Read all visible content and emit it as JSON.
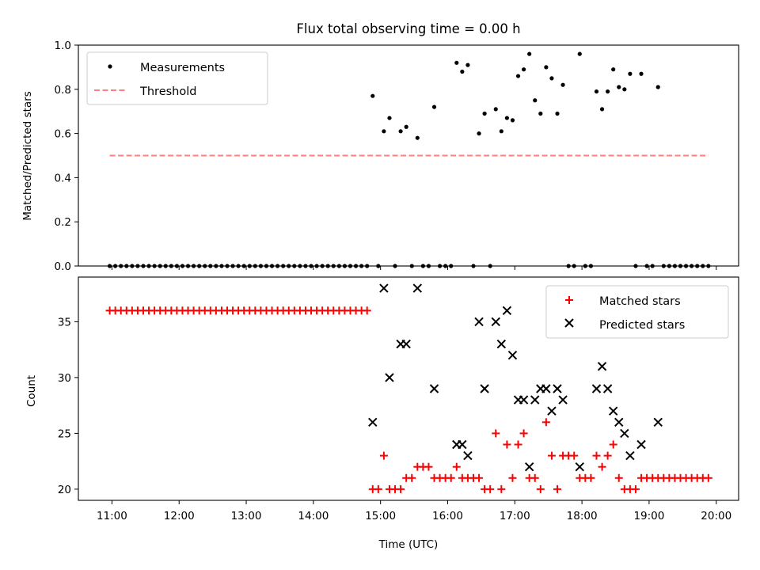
{
  "chart_data": [
    {
      "type": "scatter",
      "title": "Flux total observing time = 0.00 h",
      "ylabel": "Matched/Predicted stars",
      "xlim": [
        "10:30",
        "20:20"
      ],
      "ylim": [
        0,
        1.0
      ],
      "yticks": [
        0.0,
        0.2,
        0.4,
        0.6,
        0.8,
        1.0
      ],
      "ytick_labels": [
        "0.0",
        "0.2",
        "0.4",
        "0.6",
        "0.8",
        "1.0"
      ],
      "legend_position": "top-left",
      "series": [
        {
          "name": "Measurements",
          "style": "dot",
          "color": "#000000",
          "points": [
            [
              "10:58",
              0
            ],
            [
              "11:03",
              0
            ],
            [
              "11:08",
              0
            ],
            [
              "11:13",
              0
            ],
            [
              "11:18",
              0
            ],
            [
              "11:23",
              0
            ],
            [
              "11:28",
              0
            ],
            [
              "11:33",
              0
            ],
            [
              "11:38",
              0
            ],
            [
              "11:43",
              0
            ],
            [
              "11:48",
              0
            ],
            [
              "11:53",
              0
            ],
            [
              "11:58",
              0
            ],
            [
              "12:03",
              0
            ],
            [
              "12:08",
              0
            ],
            [
              "12:13",
              0
            ],
            [
              "12:18",
              0
            ],
            [
              "12:23",
              0
            ],
            [
              "12:28",
              0
            ],
            [
              "12:33",
              0
            ],
            [
              "12:38",
              0
            ],
            [
              "12:43",
              0
            ],
            [
              "12:48",
              0
            ],
            [
              "12:53",
              0
            ],
            [
              "12:58",
              0
            ],
            [
              "13:03",
              0
            ],
            [
              "13:08",
              0
            ],
            [
              "13:13",
              0
            ],
            [
              "13:18",
              0
            ],
            [
              "13:23",
              0
            ],
            [
              "13:28",
              0
            ],
            [
              "13:33",
              0
            ],
            [
              "13:38",
              0
            ],
            [
              "13:43",
              0
            ],
            [
              "13:48",
              0
            ],
            [
              "13:53",
              0
            ],
            [
              "13:58",
              0
            ],
            [
              "14:03",
              0
            ],
            [
              "14:08",
              0
            ],
            [
              "14:13",
              0
            ],
            [
              "14:18",
              0
            ],
            [
              "14:23",
              0
            ],
            [
              "14:28",
              0
            ],
            [
              "14:33",
              0
            ],
            [
              "14:38",
              0
            ],
            [
              "14:43",
              0
            ],
            [
              "14:48",
              0
            ],
            [
              "14:53",
              0.77
            ],
            [
              "14:58",
              0
            ],
            [
              "15:03",
              0.61
            ],
            [
              "15:08",
              0.67
            ],
            [
              "15:13",
              0
            ],
            [
              "15:18",
              0.61
            ],
            [
              "15:23",
              0.63
            ],
            [
              "15:28",
              0
            ],
            [
              "15:33",
              0.58
            ],
            [
              "15:38",
              0
            ],
            [
              "15:43",
              0
            ],
            [
              "15:48",
              0.72
            ],
            [
              "15:53",
              0
            ],
            [
              "15:58",
              0
            ],
            [
              "16:03",
              0
            ],
            [
              "16:08",
              0.92
            ],
            [
              "16:13",
              0.88
            ],
            [
              "16:18",
              0.91
            ],
            [
              "16:23",
              0
            ],
            [
              "16:28",
              0.6
            ],
            [
              "16:33",
              0.69
            ],
            [
              "16:38",
              0
            ],
            [
              "16:43",
              0.71
            ],
            [
              "16:48",
              0.61
            ],
            [
              "16:53",
              0.67
            ],
            [
              "16:58",
              0.66
            ],
            [
              "17:03",
              0.86
            ],
            [
              "17:08",
              0.89
            ],
            [
              "17:13",
              0.96
            ],
            [
              "17:18",
              0.75
            ],
            [
              "17:23",
              0.69
            ],
            [
              "17:28",
              0.9
            ],
            [
              "17:33",
              0.85
            ],
            [
              "17:38",
              0.69
            ],
            [
              "17:43",
              0.82
            ],
            [
              "17:48",
              0
            ],
            [
              "17:53",
              0
            ],
            [
              "17:58",
              0.96
            ],
            [
              "18:03",
              0
            ],
            [
              "18:08",
              0
            ],
            [
              "18:13",
              0.79
            ],
            [
              "18:18",
              0.71
            ],
            [
              "18:23",
              0.79
            ],
            [
              "18:28",
              0.89
            ],
            [
              "18:33",
              0.81
            ],
            [
              "18:38",
              0.8
            ],
            [
              "18:43",
              0.87
            ],
            [
              "18:48",
              0
            ],
            [
              "18:53",
              0.87
            ],
            [
              "18:58",
              0
            ],
            [
              "19:03",
              0
            ],
            [
              "19:08",
              0.81
            ],
            [
              "19:13",
              0
            ],
            [
              "19:18",
              0
            ],
            [
              "19:23",
              0
            ],
            [
              "19:28",
              0
            ],
            [
              "19:33",
              0
            ],
            [
              "19:38",
              0
            ],
            [
              "19:43",
              0
            ],
            [
              "19:48",
              0
            ],
            [
              "19:53",
              0
            ]
          ]
        },
        {
          "name": "Threshold",
          "style": "dashed-line",
          "color": "#ff7f7f",
          "points": [
            [
              "10:58",
              0.5
            ],
            [
              "19:53",
              0.5
            ]
          ]
        }
      ]
    },
    {
      "type": "scatter",
      "xlabel": "Time (UTC)",
      "ylabel": "Count",
      "xlim": [
        "10:30",
        "20:20"
      ],
      "ylim": [
        19.0,
        39.0
      ],
      "yticks": [
        20,
        25,
        30,
        35
      ],
      "ytick_labels": [
        "20",
        "25",
        "30",
        "35"
      ],
      "xticks": [
        "11:00",
        "12:00",
        "13:00",
        "14:00",
        "15:00",
        "16:00",
        "17:00",
        "18:00",
        "19:00",
        "20:00"
      ],
      "xtick_labels": [
        "11:00",
        "12:00",
        "13:00",
        "14:00",
        "15:00",
        "16:00",
        "17:00",
        "18:00",
        "19:00",
        "20:00"
      ],
      "legend_position": "top-right",
      "series": [
        {
          "name": "Matched stars",
          "style": "plus",
          "color": "#ff0000",
          "points": [
            [
              "10:58",
              36
            ],
            [
              "11:03",
              36
            ],
            [
              "11:08",
              36
            ],
            [
              "11:13",
              36
            ],
            [
              "11:18",
              36
            ],
            [
              "11:23",
              36
            ],
            [
              "11:28",
              36
            ],
            [
              "11:33",
              36
            ],
            [
              "11:38",
              36
            ],
            [
              "11:43",
              36
            ],
            [
              "11:48",
              36
            ],
            [
              "11:53",
              36
            ],
            [
              "11:58",
              36
            ],
            [
              "12:03",
              36
            ],
            [
              "12:08",
              36
            ],
            [
              "12:13",
              36
            ],
            [
              "12:18",
              36
            ],
            [
              "12:23",
              36
            ],
            [
              "12:28",
              36
            ],
            [
              "12:33",
              36
            ],
            [
              "12:38",
              36
            ],
            [
              "12:43",
              36
            ],
            [
              "12:48",
              36
            ],
            [
              "12:53",
              36
            ],
            [
              "12:58",
              36
            ],
            [
              "13:03",
              36
            ],
            [
              "13:08",
              36
            ],
            [
              "13:13",
              36
            ],
            [
              "13:18",
              36
            ],
            [
              "13:23",
              36
            ],
            [
              "13:28",
              36
            ],
            [
              "13:33",
              36
            ],
            [
              "13:38",
              36
            ],
            [
              "13:43",
              36
            ],
            [
              "13:48",
              36
            ],
            [
              "13:53",
              36
            ],
            [
              "13:58",
              36
            ],
            [
              "14:03",
              36
            ],
            [
              "14:08",
              36
            ],
            [
              "14:13",
              36
            ],
            [
              "14:18",
              36
            ],
            [
              "14:23",
              36
            ],
            [
              "14:28",
              36
            ],
            [
              "14:33",
              36
            ],
            [
              "14:38",
              36
            ],
            [
              "14:43",
              36
            ],
            [
              "14:48",
              36
            ],
            [
              "14:53",
              20
            ],
            [
              "14:58",
              20
            ],
            [
              "15:03",
              23
            ],
            [
              "15:08",
              20
            ],
            [
              "15:13",
              20
            ],
            [
              "15:18",
              20
            ],
            [
              "15:23",
              21
            ],
            [
              "15:28",
              21
            ],
            [
              "15:33",
              22
            ],
            [
              "15:38",
              22
            ],
            [
              "15:43",
              22
            ],
            [
              "15:48",
              21
            ],
            [
              "15:53",
              21
            ],
            [
              "15:58",
              21
            ],
            [
              "16:03",
              21
            ],
            [
              "16:08",
              22
            ],
            [
              "16:13",
              21
            ],
            [
              "16:18",
              21
            ],
            [
              "16:23",
              21
            ],
            [
              "16:28",
              21
            ],
            [
              "16:33",
              20
            ],
            [
              "16:38",
              20
            ],
            [
              "16:43",
              25
            ],
            [
              "16:48",
              20
            ],
            [
              "16:53",
              24
            ],
            [
              "16:58",
              21
            ],
            [
              "17:03",
              24
            ],
            [
              "17:08",
              25
            ],
            [
              "17:13",
              21
            ],
            [
              "17:18",
              21
            ],
            [
              "17:23",
              20
            ],
            [
              "17:28",
              26
            ],
            [
              "17:33",
              23
            ],
            [
              "17:38",
              20
            ],
            [
              "17:43",
              23
            ],
            [
              "17:48",
              23
            ],
            [
              "17:53",
              23
            ],
            [
              "17:58",
              21
            ],
            [
              "18:03",
              21
            ],
            [
              "18:08",
              21
            ],
            [
              "18:13",
              23
            ],
            [
              "18:18",
              22
            ],
            [
              "18:23",
              23
            ],
            [
              "18:28",
              24
            ],
            [
              "18:33",
              21
            ],
            [
              "18:38",
              20
            ],
            [
              "18:43",
              20
            ],
            [
              "18:48",
              20
            ],
            [
              "18:53",
              21
            ],
            [
              "18:58",
              21
            ],
            [
              "19:03",
              21
            ],
            [
              "19:08",
              21
            ],
            [
              "19:13",
              21
            ],
            [
              "19:18",
              21
            ],
            [
              "19:23",
              21
            ],
            [
              "19:28",
              21
            ],
            [
              "19:33",
              21
            ],
            [
              "19:38",
              21
            ],
            [
              "19:43",
              21
            ],
            [
              "19:48",
              21
            ],
            [
              "19:53",
              21
            ]
          ]
        },
        {
          "name": "Predicted stars",
          "style": "x",
          "color": "#000000",
          "points": [
            [
              "14:53",
              26
            ],
            [
              "15:03",
              38
            ],
            [
              "15:08",
              30
            ],
            [
              "15:18",
              33
            ],
            [
              "15:23",
              33
            ],
            [
              "15:33",
              38
            ],
            [
              "15:48",
              29
            ],
            [
              "16:08",
              24
            ],
            [
              "16:13",
              24
            ],
            [
              "16:18",
              23
            ],
            [
              "16:28",
              35
            ],
            [
              "16:33",
              29
            ],
            [
              "16:43",
              35
            ],
            [
              "16:48",
              33
            ],
            [
              "16:53",
              36
            ],
            [
              "16:58",
              32
            ],
            [
              "17:03",
              28
            ],
            [
              "17:08",
              28
            ],
            [
              "17:13",
              22
            ],
            [
              "17:18",
              28
            ],
            [
              "17:23",
              29
            ],
            [
              "17:28",
              29
            ],
            [
              "17:33",
              27
            ],
            [
              "17:38",
              29
            ],
            [
              "17:43",
              28
            ],
            [
              "17:58",
              22
            ],
            [
              "18:13",
              29
            ],
            [
              "18:18",
              31
            ],
            [
              "18:23",
              29
            ],
            [
              "18:28",
              27
            ],
            [
              "18:33",
              26
            ],
            [
              "18:38",
              25
            ],
            [
              "18:43",
              23
            ],
            [
              "18:53",
              24
            ],
            [
              "19:08",
              26
            ]
          ]
        }
      ]
    }
  ]
}
